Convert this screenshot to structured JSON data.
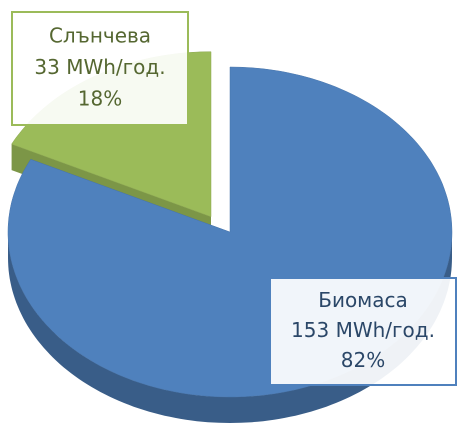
{
  "chart_data": {
    "type": "pie",
    "categories": [
      "Слънчева",
      "Биомаса"
    ],
    "values": [
      33,
      153
    ],
    "value_labels": [
      "33 MWh/год.",
      "153 MWh/год."
    ],
    "percent_labels": [
      "18%",
      "82%"
    ],
    "colors": [
      "#9bbb59",
      "#4f81bd"
    ]
  }
}
